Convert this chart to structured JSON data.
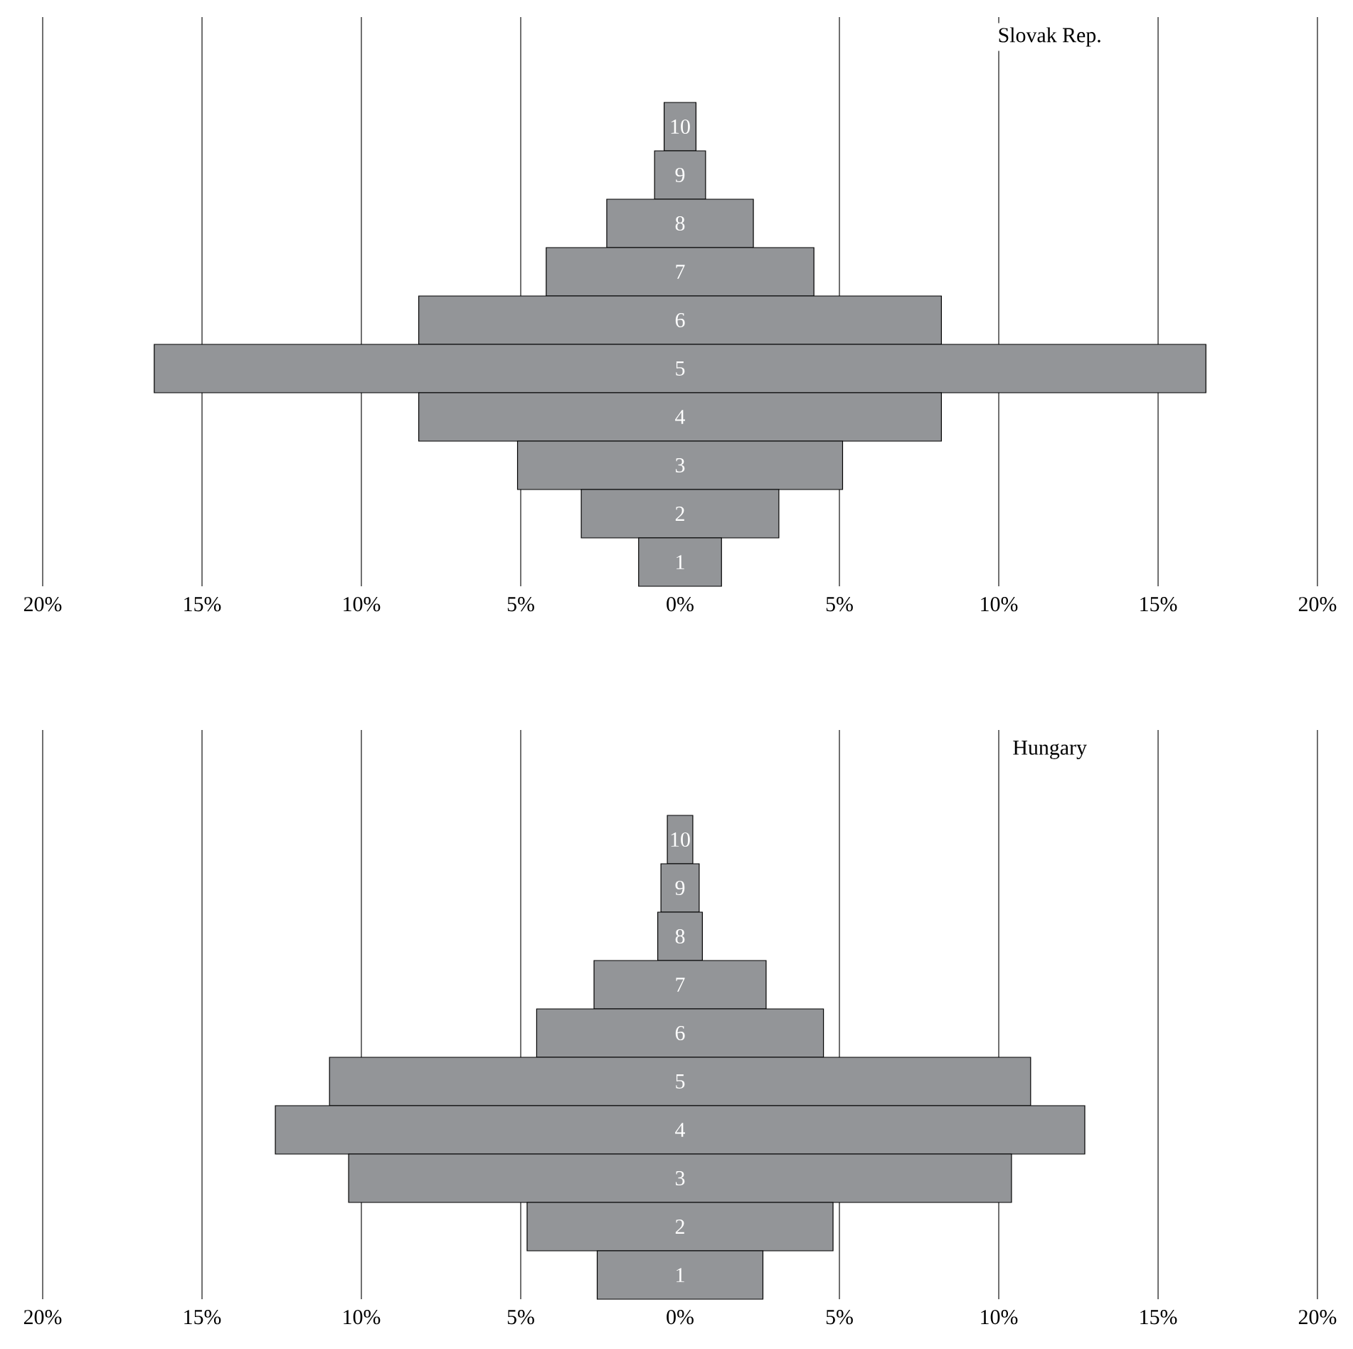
{
  "chart_data": [
    {
      "type": "bar",
      "orientation": "horizontal",
      "title": "Slovak Rep.",
      "categories": [
        "10",
        "9",
        "8",
        "7",
        "6",
        "5",
        "4",
        "3",
        "2",
        "1"
      ],
      "color": "#939598",
      "base": [
        -0.5,
        -0.8,
        -2.3,
        -4.2,
        -8.2,
        -16.5,
        -8.2,
        -5.1,
        -3.1,
        -1.3
      ],
      "values": [
        1.0,
        1.6,
        4.6,
        8.4,
        16.4,
        33.0,
        16.4,
        10.2,
        6.2,
        2.6
      ],
      "xlim": [
        -20,
        20
      ],
      "xticks": [
        {
          "value": -20,
          "label": "20%"
        },
        {
          "value": -15,
          "label": "15%"
        },
        {
          "value": -10,
          "label": "10%"
        },
        {
          "value": -5,
          "label": "5%"
        },
        {
          "value": 0,
          "label": "0%"
        },
        {
          "value": 5,
          "label": "5%"
        },
        {
          "value": 10,
          "label": "10%"
        },
        {
          "value": 15,
          "label": "15%"
        },
        {
          "value": 20,
          "label": "20%"
        }
      ],
      "grid": "x"
    },
    {
      "type": "bar",
      "orientation": "horizontal",
      "title": "Hungary",
      "categories": [
        "10",
        "9",
        "8",
        "7",
        "6",
        "5",
        "4",
        "3",
        "2",
        "1"
      ],
      "color": "#939598",
      "base": [
        -0.4,
        -0.6,
        -0.7,
        -2.7,
        -4.5,
        -11.0,
        -12.7,
        -10.4,
        -4.8,
        -2.6
      ],
      "values": [
        0.8,
        1.2,
        1.4,
        5.4,
        9.0,
        22.0,
        25.4,
        20.8,
        9.6,
        5.2
      ],
      "xlim": [
        -20,
        20
      ],
      "xticks": [
        {
          "value": -20,
          "label": "20%"
        },
        {
          "value": -15,
          "label": "15%"
        },
        {
          "value": -10,
          "label": "10%"
        },
        {
          "value": -5,
          "label": "5%"
        },
        {
          "value": 0,
          "label": "0%"
        },
        {
          "value": 5,
          "label": "5%"
        },
        {
          "value": 10,
          "label": "10%"
        },
        {
          "value": 15,
          "label": "15%"
        },
        {
          "value": 20,
          "label": "20%"
        }
      ],
      "grid": "x"
    }
  ]
}
